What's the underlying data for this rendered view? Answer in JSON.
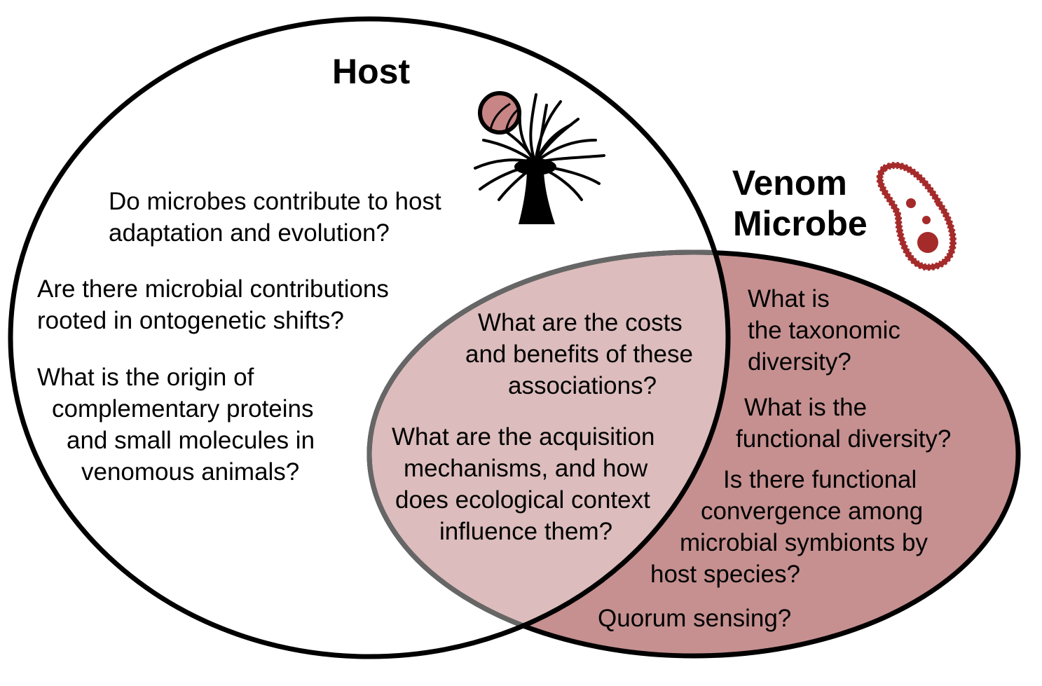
{
  "colors": {
    "outline": "#000000",
    "overlap_outline": "#666666",
    "overlap_fill": "#dcbcbc",
    "microbe_fill": "#c69090",
    "icon_red": "#a52a2a",
    "icon_pink": "#c78585"
  },
  "icons": {
    "host": "sea-anemone-icon",
    "microbe": "bacterium-icon"
  },
  "host": {
    "title": "Host",
    "q1": {
      "l1": "Do microbes contribute to host",
      "l2": "adaptation and evolution?"
    },
    "q2": {
      "l1": "Are there microbial contributions",
      "l2": "rooted in ontogenetic shifts?"
    },
    "q3": {
      "l1": "What is the origin of",
      "l2": "complementary proteins",
      "l3": "and small molecules in",
      "l4": "venomous animals?"
    }
  },
  "microbe": {
    "title_l1": "Venom",
    "title_l2": "Microbe",
    "q1": {
      "l1": "What is",
      "l2": "the taxonomic",
      "l3": "diversity?"
    },
    "q2": {
      "l1": "What is the",
      "l2": "functional diversity?"
    },
    "q3": {
      "l1": "Is there functional",
      "l2": "convergence among",
      "l3": "microbial symbionts by",
      "l4": "host species?"
    },
    "q4": "Quorum sensing?"
  },
  "overlap": {
    "q1": {
      "l1": "What are the costs",
      "l2": "and benefits of these",
      "l3": "associations?"
    },
    "q2": {
      "l1": "What are the acquisition",
      "l2": "mechanisms, and how",
      "l3": "does ecological context",
      "l4": "influence them?"
    }
  }
}
